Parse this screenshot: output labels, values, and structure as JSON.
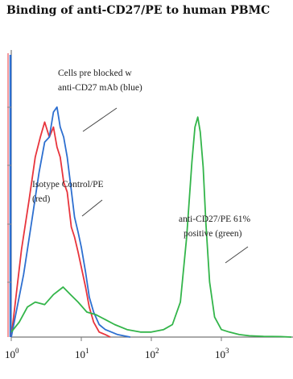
{
  "chart_data": {
    "type": "line",
    "title": "Binding of anti-CD27/PE to human PBMC",
    "xlabel": "",
    "ylabel": "",
    "x_scale": "log",
    "xlim": [
      1,
      10000
    ],
    "ylim": [
      0,
      100
    ],
    "x_ticks": [
      {
        "value": 1,
        "base": "10",
        "exp": "0"
      },
      {
        "value": 10,
        "base": "10",
        "exp": "1"
      },
      {
        "value": 100,
        "base": "10",
        "exp": "2"
      },
      {
        "value": 1000,
        "base": "10",
        "exp": "3"
      }
    ],
    "series": [
      {
        "name": "Isotype Control/PE (red)",
        "color": "#e8343c",
        "x": [
          1,
          1.4,
          1.8,
          2.2,
          2.6,
          3.0,
          3.5,
          4.0,
          4.5,
          5.0,
          5.6,
          6.3,
          7.2,
          8.0,
          9.0,
          10,
          11.5,
          13,
          15,
          18,
          22,
          26
        ],
        "y": [
          0,
          35,
          55,
          72,
          80,
          86,
          80,
          84,
          76,
          72,
          62,
          58,
          44,
          40,
          34,
          28,
          20,
          12,
          6,
          2,
          1,
          0
        ]
      },
      {
        "name": "Cells pre blocked w anti-CD27 mAb (blue)",
        "color": "#2d6fd0",
        "x": [
          1,
          1.5,
          2.0,
          2.5,
          3.0,
          3.5,
          4.0,
          4.5,
          5.0,
          5.6,
          6.3,
          7.1,
          8.0,
          9.0,
          10,
          11.5,
          13,
          15,
          18,
          22,
          27,
          33,
          40,
          50
        ],
        "y": [
          0,
          25,
          48,
          66,
          78,
          80,
          90,
          92,
          84,
          80,
          72,
          60,
          48,
          42,
          36,
          26,
          16,
          10,
          5,
          3,
          2,
          1,
          0.5,
          0
        ]
      },
      {
        "name": "anti-CD27/PE 61% positive (green)",
        "color": "#33b54a",
        "x": [
          1,
          1.3,
          1.7,
          2.2,
          3.0,
          4.0,
          5.5,
          7.0,
          9.0,
          12,
          16,
          22,
          30,
          45,
          70,
          100,
          150,
          200,
          260,
          320,
          380,
          420,
          460,
          500,
          550,
          600,
          680,
          800,
          1000,
          1300,
          1800,
          2500,
          4000,
          7000,
          10000
        ],
        "y": [
          2,
          6,
          12,
          14,
          13,
          17,
          20,
          17,
          14,
          10,
          9,
          7,
          5,
          3,
          2,
          2,
          3,
          5,
          14,
          40,
          70,
          84,
          88,
          82,
          68,
          46,
          22,
          8,
          3,
          2,
          1,
          0.5,
          0.3,
          0.2,
          0
        ]
      }
    ],
    "annotations": {
      "blue_label_line1": "Cells pre blocked w",
      "blue_label_line2": "anti-CD27 mAb (blue)",
      "red_label_line1": "Isotype Control/PE",
      "red_label_line2": "(red)",
      "green_label_line1": "anti-CD27/PE  61%",
      "green_label_line2": "positive (green)"
    },
    "grid": false,
    "legend": "none"
  }
}
